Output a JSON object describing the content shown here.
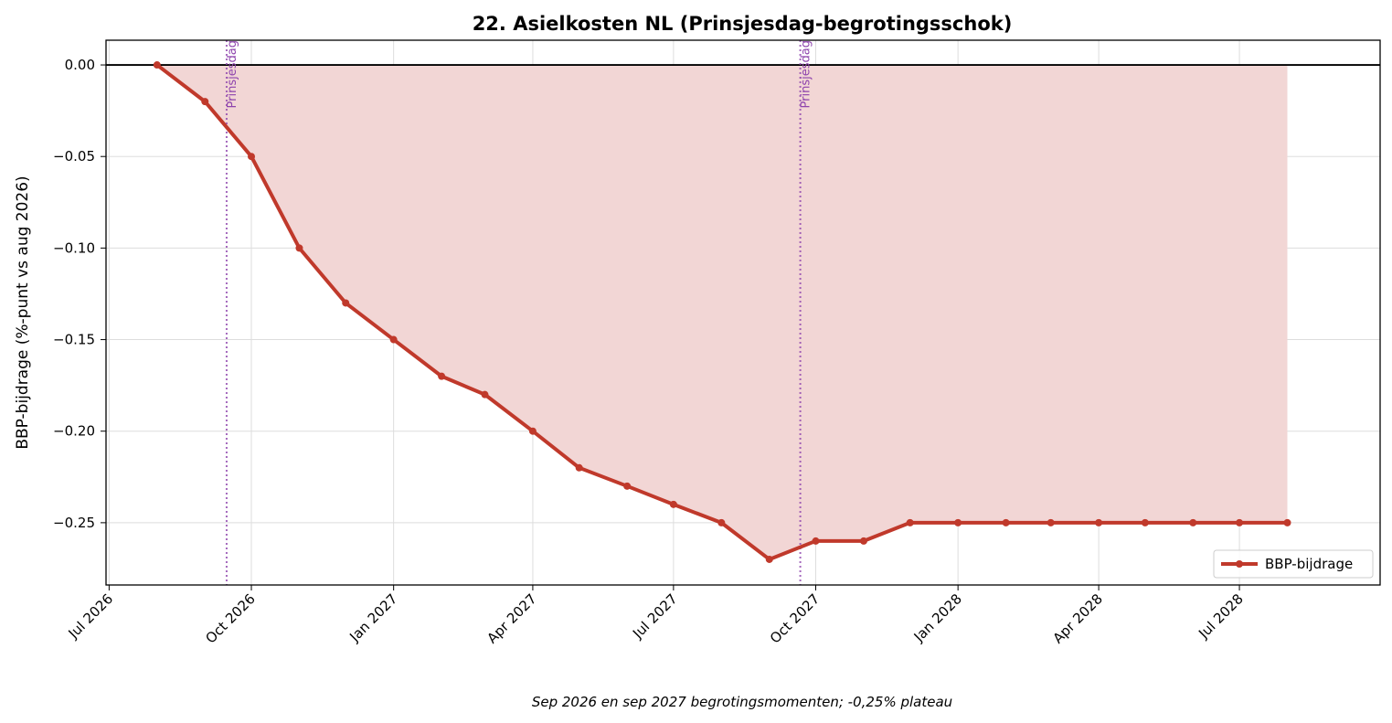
{
  "chart_data": {
    "type": "line",
    "title": "22. Asielkosten NL (Prinsjesdag-begrotingsschok)",
    "xlabel": "",
    "ylabel": "BBP-bijdrage (%-punt vs aug 2026)",
    "caption": "Sep 2026 en sep 2027 begrotingsmomenten; -0,25% plateau",
    "x_ticks": [
      "Jul 2026",
      "Oct 2026",
      "Jan 2027",
      "Apr 2027",
      "Jul 2027",
      "Oct 2027",
      "Jan 2028",
      "Apr 2028",
      "Jul 2028"
    ],
    "x_tick_dates": [
      "2026-07-01",
      "2026-10-01",
      "2027-01-01",
      "2027-04-01",
      "2027-07-01",
      "2027-10-01",
      "2028-01-01",
      "2028-04-01",
      "2028-07-01"
    ],
    "y_ticks": [
      "0.00",
      "−0.05",
      "−0.10",
      "−0.15",
      "−0.20",
      "−0.25"
    ],
    "y_tick_values": [
      0,
      -0.05,
      -0.1,
      -0.15,
      -0.2,
      -0.25
    ],
    "xlim": [
      "2026-06-29",
      "2028-09-30"
    ],
    "ylim": [
      -0.284,
      0.0135
    ],
    "grid": true,
    "zero_line": true,
    "fill_to_zero": true,
    "legend_position": "lower-right",
    "series": [
      {
        "name": "BBP-bijdrage",
        "color": "#c0392b",
        "fill_color": "#f2d6d5",
        "points": [
          {
            "x": "2026-08-01",
            "y": 0.0
          },
          {
            "x": "2026-09-01",
            "y": -0.02
          },
          {
            "x": "2026-10-01",
            "y": -0.05
          },
          {
            "x": "2026-11-01",
            "y": -0.1
          },
          {
            "x": "2026-12-01",
            "y": -0.13
          },
          {
            "x": "2027-01-01",
            "y": -0.15
          },
          {
            "x": "2027-02-01",
            "y": -0.17
          },
          {
            "x": "2027-03-01",
            "y": -0.18
          },
          {
            "x": "2027-04-01",
            "y": -0.2
          },
          {
            "x": "2027-05-01",
            "y": -0.22
          },
          {
            "x": "2027-06-01",
            "y": -0.23
          },
          {
            "x": "2027-07-01",
            "y": -0.24
          },
          {
            "x": "2027-08-01",
            "y": -0.25
          },
          {
            "x": "2027-09-01",
            "y": -0.27
          },
          {
            "x": "2027-10-01",
            "y": -0.26
          },
          {
            "x": "2027-11-01",
            "y": -0.26
          },
          {
            "x": "2027-12-01",
            "y": -0.25
          },
          {
            "x": "2028-01-01",
            "y": -0.25
          },
          {
            "x": "2028-02-01",
            "y": -0.25
          },
          {
            "x": "2028-03-01",
            "y": -0.25
          },
          {
            "x": "2028-04-01",
            "y": -0.25
          },
          {
            "x": "2028-05-01",
            "y": -0.25
          },
          {
            "x": "2028-06-01",
            "y": -0.25
          },
          {
            "x": "2028-07-01",
            "y": -0.25
          },
          {
            "x": "2028-08-01",
            "y": -0.25
          }
        ]
      }
    ],
    "annotations": [
      {
        "type": "vline",
        "x": "2026-09-15",
        "label": "Prinsjesdag",
        "color": "#8e44ad"
      },
      {
        "type": "vline",
        "x": "2027-09-21",
        "label": "Prinsjesdag",
        "color": "#8e44ad"
      }
    ]
  }
}
